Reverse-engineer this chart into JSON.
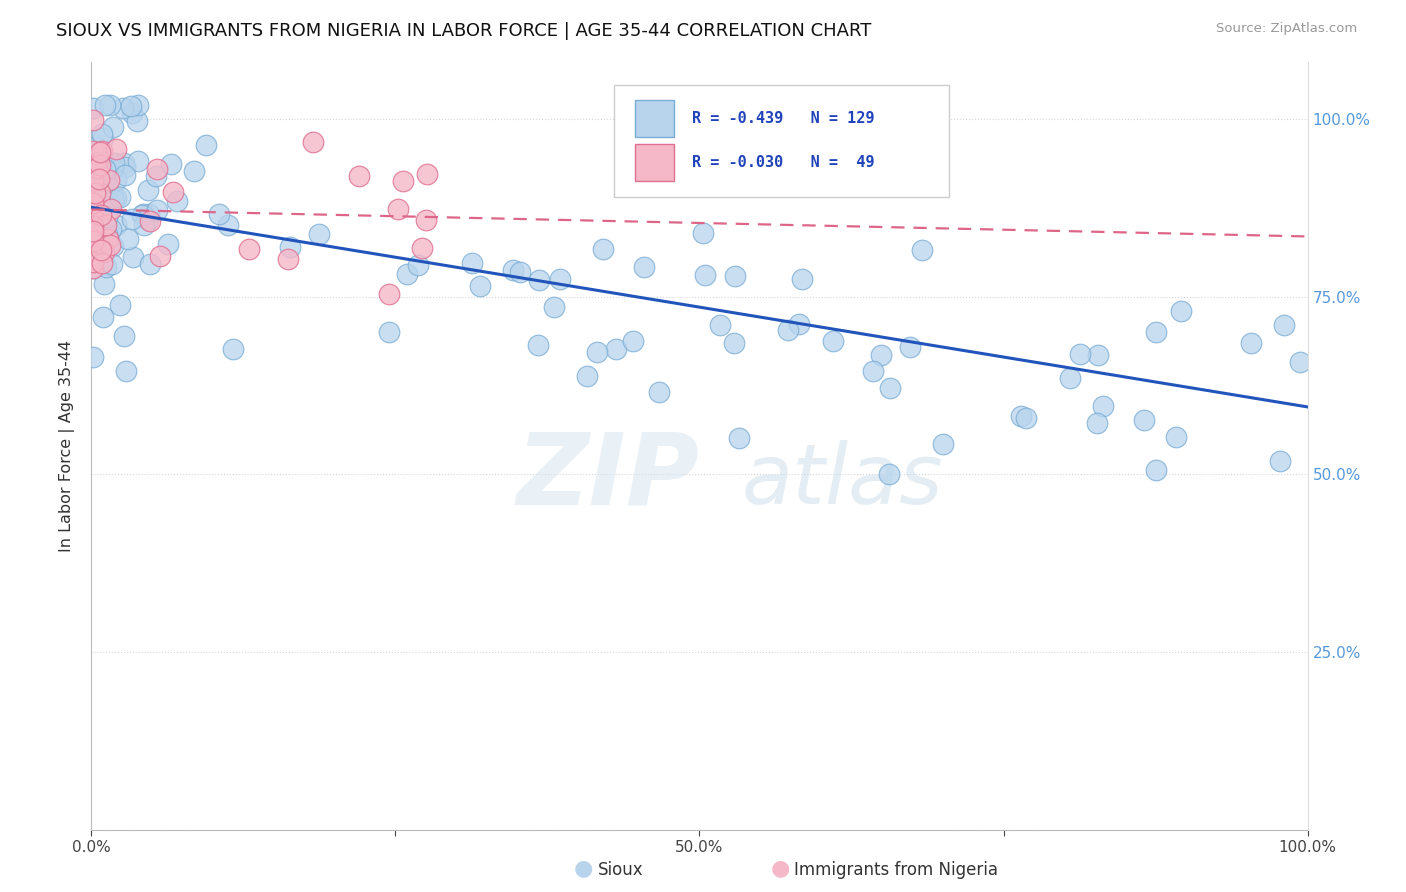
{
  "title": "SIOUX VS IMMIGRANTS FROM NIGERIA IN LABOR FORCE | AGE 35-44 CORRELATION CHART",
  "source_text": "Source: ZipAtlas.com",
  "ylabel": "In Labor Force | Age 35-44",
  "xlim": [
    0.0,
    1.0
  ],
  "ylim": [
    0.0,
    1.08
  ],
  "x_ticks": [
    0.0,
    0.25,
    0.5,
    0.75,
    1.0
  ],
  "x_tick_labels": [
    "0.0%",
    "",
    "50.0%",
    "",
    "100.0%"
  ],
  "y_ticks": [
    0.0,
    0.25,
    0.5,
    0.75,
    1.0
  ],
  "y_tick_labels_right": [
    "",
    "25.0%",
    "50.0%",
    "75.0%",
    "100.0%"
  ],
  "blue_color": "#b8d4ed",
  "blue_edge": "#7aadd4",
  "pink_color": "#f5b8c8",
  "pink_edge": "#e07090",
  "trend_blue": "#2255bb",
  "trend_pink": "#dd6688",
  "watermark_zip": "ZIP",
  "watermark_atlas": "atlas",
  "title_fontsize": 13,
  "blue_trend_start_y": 0.876,
  "blue_trend_end_y": 0.595,
  "pink_trend_start_y": 0.873,
  "pink_trend_end_y": 0.835
}
